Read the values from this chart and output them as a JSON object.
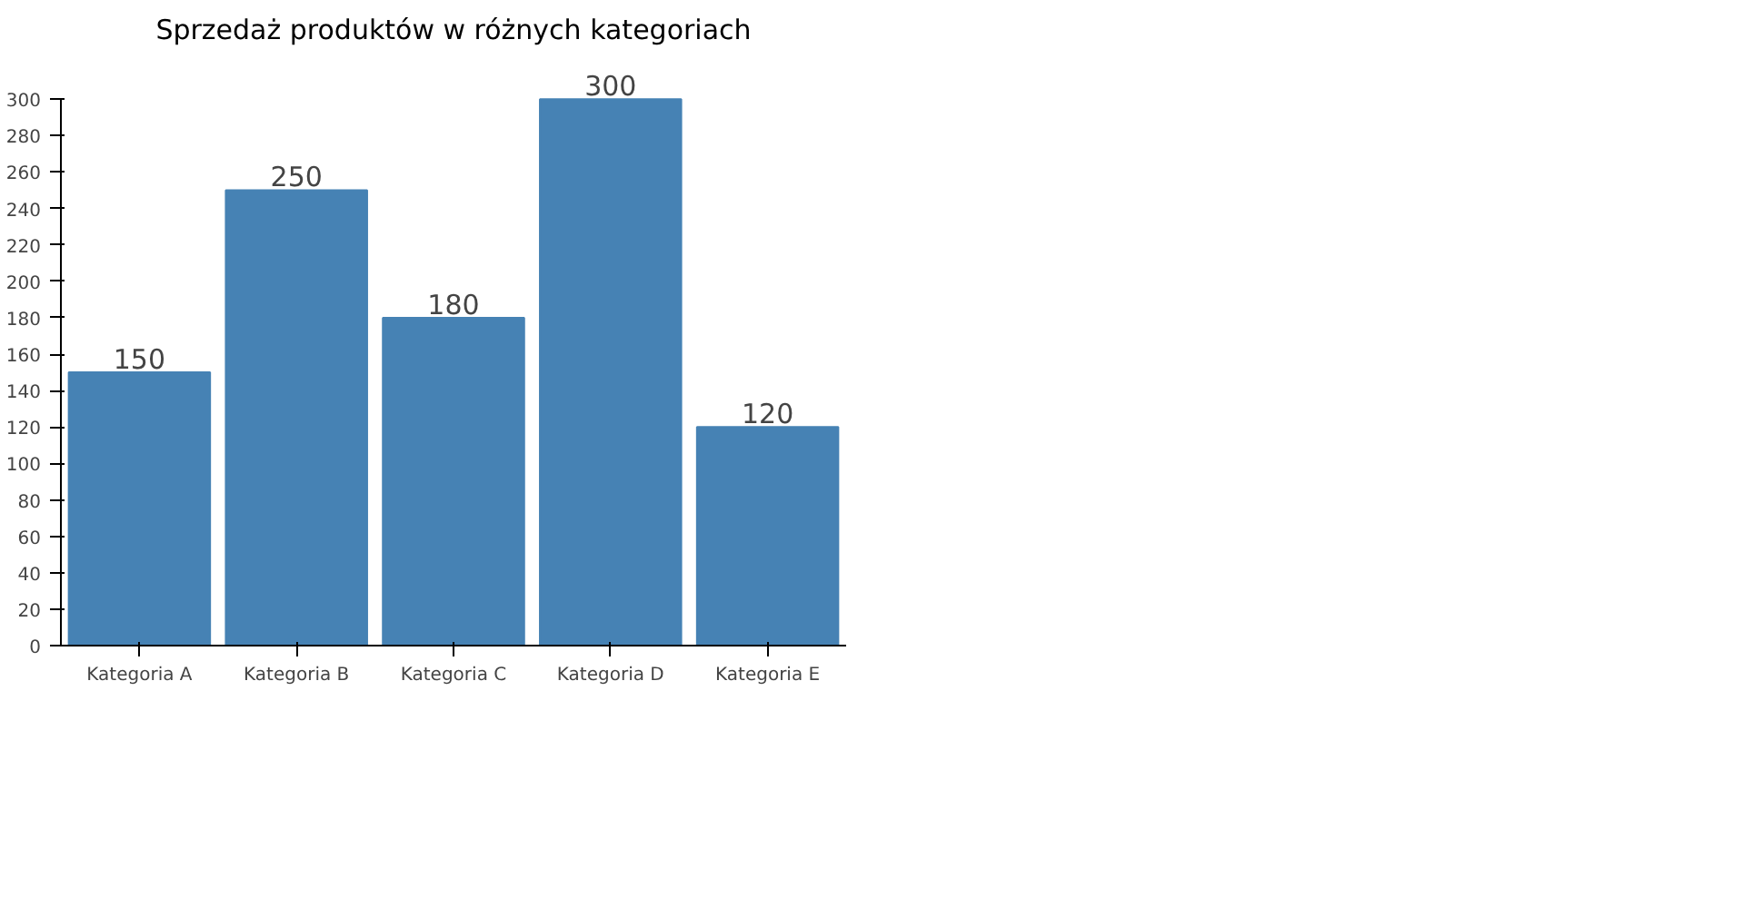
{
  "chart_data": {
    "type": "bar",
    "title": "Sprzedaż produktów w różnych kategoriach",
    "categories": [
      "Kategoria A",
      "Kategoria B",
      "Kategoria C",
      "Kategoria D",
      "Kategoria E"
    ],
    "values": [
      150,
      250,
      180,
      300,
      120
    ],
    "color": "#4682b4",
    "ylim": [
      0,
      300
    ],
    "yticks": [
      0,
      20,
      40,
      60,
      80,
      100,
      120,
      140,
      160,
      180,
      200,
      220,
      240,
      260,
      280,
      300
    ],
    "data_labels": true
  }
}
